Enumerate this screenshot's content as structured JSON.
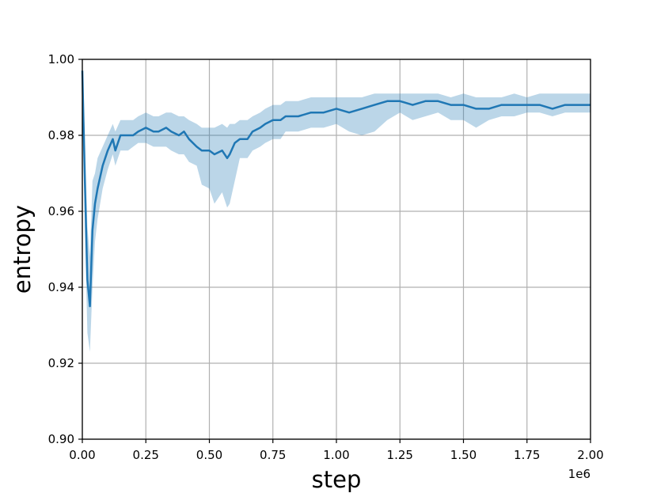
{
  "chart_data": {
    "type": "line",
    "title": "",
    "xlabel": "step",
    "ylabel": "entropy",
    "x_offset_label": "1e6",
    "xlim": [
      0,
      2.0
    ],
    "ylim": [
      0.9,
      1.0
    ],
    "x_ticks": [
      0.0,
      0.25,
      0.5,
      0.75,
      1.0,
      1.25,
      1.5,
      1.75,
      2.0
    ],
    "x_tick_labels": [
      "0.00",
      "0.25",
      "0.50",
      "0.75",
      "1.00",
      "1.25",
      "1.50",
      "1.75",
      "2.00"
    ],
    "y_ticks": [
      0.9,
      0.92,
      0.94,
      0.96,
      0.98,
      1.0
    ],
    "y_tick_labels": [
      "0.90",
      "0.92",
      "0.94",
      "0.96",
      "0.98",
      "1.00"
    ],
    "grid": true,
    "colors": {
      "line": "#1f77b4",
      "band": "#1f77b4"
    },
    "series": [
      {
        "x": [
          0.0,
          0.01,
          0.02,
          0.03,
          0.04,
          0.05,
          0.06,
          0.08,
          0.1,
          0.12,
          0.13,
          0.15,
          0.18,
          0.2,
          0.22,
          0.25,
          0.28,
          0.3,
          0.33,
          0.35,
          0.38,
          0.4,
          0.42,
          0.45,
          0.47,
          0.5,
          0.52,
          0.55,
          0.57,
          0.58,
          0.6,
          0.62,
          0.65,
          0.67,
          0.7,
          0.72,
          0.75,
          0.78,
          0.8,
          0.85,
          0.9,
          0.95,
          1.0,
          1.05,
          1.1,
          1.15,
          1.2,
          1.25,
          1.3,
          1.35,
          1.4,
          1.45,
          1.5,
          1.55,
          1.6,
          1.65,
          1.7,
          1.75,
          1.8,
          1.85,
          1.9,
          1.95,
          2.0
        ],
        "mean": [
          0.997,
          0.968,
          0.942,
          0.935,
          0.955,
          0.962,
          0.966,
          0.972,
          0.976,
          0.979,
          0.976,
          0.98,
          0.98,
          0.98,
          0.981,
          0.982,
          0.981,
          0.981,
          0.982,
          0.981,
          0.98,
          0.981,
          0.979,
          0.977,
          0.976,
          0.976,
          0.975,
          0.976,
          0.974,
          0.975,
          0.978,
          0.979,
          0.979,
          0.981,
          0.982,
          0.983,
          0.984,
          0.984,
          0.985,
          0.985,
          0.986,
          0.986,
          0.987,
          0.986,
          0.987,
          0.988,
          0.989,
          0.989,
          0.988,
          0.989,
          0.989,
          0.988,
          0.988,
          0.987,
          0.987,
          0.988,
          0.988,
          0.988,
          0.988,
          0.987,
          0.988,
          0.988,
          0.988
        ],
        "lower": [
          0.996,
          0.955,
          0.928,
          0.923,
          0.94,
          0.952,
          0.958,
          0.966,
          0.971,
          0.975,
          0.972,
          0.976,
          0.976,
          0.977,
          0.978,
          0.978,
          0.977,
          0.977,
          0.977,
          0.976,
          0.975,
          0.975,
          0.973,
          0.972,
          0.967,
          0.966,
          0.962,
          0.965,
          0.961,
          0.962,
          0.968,
          0.974,
          0.974,
          0.976,
          0.977,
          0.978,
          0.979,
          0.979,
          0.981,
          0.981,
          0.982,
          0.982,
          0.983,
          0.981,
          0.98,
          0.981,
          0.984,
          0.986,
          0.984,
          0.985,
          0.986,
          0.984,
          0.984,
          0.982,
          0.984,
          0.985,
          0.985,
          0.986,
          0.986,
          0.985,
          0.986,
          0.986,
          0.986
        ],
        "upper": [
          0.998,
          0.98,
          0.956,
          0.948,
          0.968,
          0.97,
          0.974,
          0.977,
          0.98,
          0.983,
          0.981,
          0.984,
          0.984,
          0.984,
          0.985,
          0.986,
          0.985,
          0.985,
          0.986,
          0.986,
          0.985,
          0.985,
          0.984,
          0.983,
          0.982,
          0.982,
          0.982,
          0.983,
          0.982,
          0.983,
          0.983,
          0.984,
          0.984,
          0.985,
          0.986,
          0.987,
          0.988,
          0.988,
          0.989,
          0.989,
          0.99,
          0.99,
          0.99,
          0.99,
          0.99,
          0.991,
          0.991,
          0.991,
          0.991,
          0.991,
          0.991,
          0.99,
          0.991,
          0.99,
          0.99,
          0.99,
          0.991,
          0.99,
          0.991,
          0.991,
          0.991,
          0.991,
          0.991
        ]
      }
    ]
  }
}
